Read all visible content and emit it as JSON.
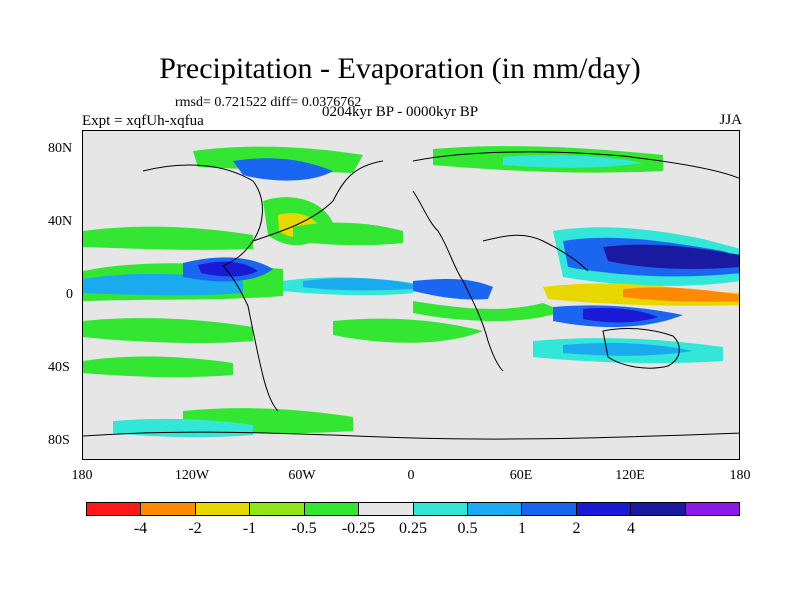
{
  "title": "Precipitation - Evaporation (in mm/day)",
  "stats": "rmsd= 0.721522 diff= 0.0376762",
  "expt": "Expt = xqfUh-xqfua",
  "period": "0204kyr BP - 0000kyr BP",
  "season": "JJA",
  "lat_ticks": [
    "80N",
    "40N",
    "0",
    "40S",
    "80S"
  ],
  "lon_ticks": [
    "180",
    "120W",
    "60W",
    "0",
    "60E",
    "120E",
    "180"
  ],
  "colorbar": {
    "colors": [
      "#ff1a1a",
      "#ff8a00",
      "#e6d800",
      "#8fe61a",
      "#32e632",
      "#e6e6e6",
      "#32e6d8",
      "#1aaaf0",
      "#1a66f0",
      "#1a1ad6",
      "#1a1aa0",
      "#8a1ae6"
    ],
    "labels": [
      "-4",
      "-2",
      "-1",
      "-0.5",
      "-0.25",
      "0.25",
      "0.5",
      "1",
      "2",
      "4"
    ]
  }
}
